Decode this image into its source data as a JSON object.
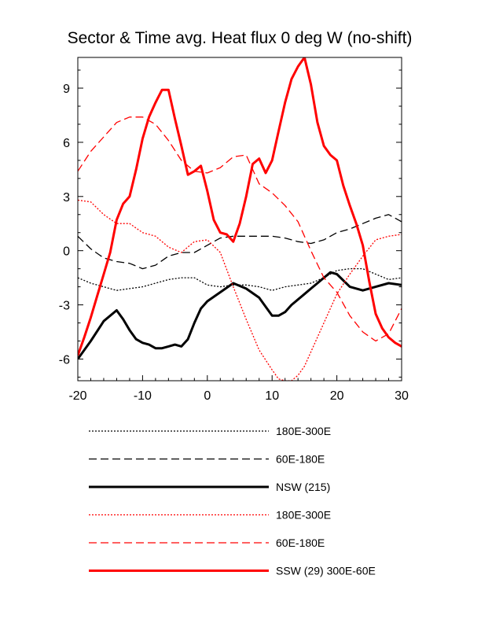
{
  "chart_data": {
    "type": "line",
    "title": "Sector & Time avg. Heat flux 0 deg W (no-shift)",
    "xlabel": "",
    "ylabel": "",
    "xlim": [
      -20,
      30
    ],
    "ylim": [
      -7.2,
      10.7
    ],
    "xticks": [
      -20,
      -10,
      0,
      10,
      20,
      30
    ],
    "yticks": [
      -6,
      -3,
      0,
      3,
      6,
      9
    ],
    "xtick_labels": [
      "-20",
      "-10",
      "0",
      "10",
      "20",
      "30"
    ],
    "ytick_labels": [
      "-6",
      "-3",
      "0",
      "3",
      "6",
      "9"
    ],
    "grid": false,
    "legend_position": "below plot",
    "series": [
      {
        "name": "180E-300E",
        "color": "#000000",
        "dash": "dotted",
        "width": "thin",
        "x": [
          -20,
          -18,
          -16,
          -14,
          -12,
          -10,
          -8,
          -6,
          -4,
          -2,
          0,
          2,
          4,
          6,
          8,
          10,
          12,
          14,
          16,
          18,
          20,
          22,
          24,
          26,
          28,
          30
        ],
        "y": [
          -1.5,
          -1.8,
          -2.0,
          -2.2,
          -2.1,
          -2.0,
          -1.8,
          -1.6,
          -1.5,
          -1.5,
          -1.9,
          -2.0,
          -1.9,
          -1.9,
          -2.0,
          -2.2,
          -2.0,
          -1.9,
          -1.8,
          -1.5,
          -1.1,
          -1.0,
          -1.0,
          -1.3,
          -1.6,
          -1.5
        ]
      },
      {
        "name": "60E-180E",
        "color": "#000000",
        "dash": "dashed",
        "width": "thin",
        "x": [
          -20,
          -18,
          -16,
          -14,
          -12,
          -10,
          -8,
          -6,
          -4,
          -2,
          0,
          2,
          4,
          6,
          8,
          10,
          12,
          14,
          16,
          18,
          20,
          22,
          24,
          26,
          28,
          30
        ],
        "y": [
          0.8,
          0.1,
          -0.4,
          -0.6,
          -0.7,
          -1.0,
          -0.8,
          -0.3,
          -0.1,
          -0.1,
          0.3,
          0.7,
          0.8,
          0.8,
          0.8,
          0.8,
          0.7,
          0.5,
          0.4,
          0.6,
          1.0,
          1.2,
          1.5,
          1.8,
          2.0,
          1.6
        ]
      },
      {
        "name": "NSW (215)",
        "color": "#000000",
        "dash": "solid",
        "width": "thick",
        "x": [
          -20,
          -18,
          -16,
          -14,
          -13,
          -12,
          -11,
          -10,
          -9,
          -8,
          -7,
          -6,
          -5,
          -4,
          -3,
          -2,
          -1,
          0,
          2,
          4,
          6,
          8,
          10,
          11,
          12,
          13,
          14,
          15,
          16,
          17,
          18,
          19,
          20,
          22,
          24,
          26,
          28,
          30
        ],
        "y": [
          -6.0,
          -5.0,
          -3.9,
          -3.3,
          -3.8,
          -4.4,
          -4.9,
          -5.1,
          -5.2,
          -5.4,
          -5.4,
          -5.3,
          -5.2,
          -5.3,
          -4.9,
          -4.0,
          -3.2,
          -2.8,
          -2.3,
          -1.8,
          -2.1,
          -2.6,
          -3.6,
          -3.6,
          -3.4,
          -3.0,
          -2.7,
          -2.4,
          -2.1,
          -1.8,
          -1.5,
          -1.2,
          -1.3,
          -2.0,
          -2.2,
          -2.0,
          -1.8,
          -1.9
        ]
      },
      {
        "name": "180E-300E",
        "color": "#ff0000",
        "dash": "dotted",
        "width": "thin",
        "x": [
          -20,
          -18,
          -16,
          -14,
          -12,
          -10,
          -8,
          -6,
          -4,
          -2,
          0,
          2,
          4,
          6,
          8,
          10,
          11,
          12,
          13,
          14,
          15,
          16,
          18,
          20,
          22,
          24,
          26,
          28,
          30
        ],
        "y": [
          2.8,
          2.7,
          2.0,
          1.5,
          1.5,
          1.0,
          0.8,
          0.2,
          -0.1,
          0.5,
          0.6,
          -0.1,
          -2.0,
          -3.8,
          -5.5,
          -6.6,
          -7.1,
          -7.2,
          -7.2,
          -6.9,
          -6.4,
          -5.6,
          -4.0,
          -2.4,
          -1.3,
          -0.3,
          0.6,
          0.8,
          0.9
        ]
      },
      {
        "name": "60E-180E",
        "color": "#ff0000",
        "dash": "dashed",
        "width": "thin",
        "x": [
          -20,
          -18,
          -16,
          -14,
          -12,
          -10,
          -8,
          -6,
          -4,
          -2,
          0,
          2,
          4,
          6,
          8,
          10,
          12,
          14,
          16,
          18,
          20,
          22,
          24,
          26,
          28,
          30
        ],
        "y": [
          4.4,
          5.5,
          6.3,
          7.1,
          7.4,
          7.4,
          7.0,
          6.1,
          5.0,
          4.4,
          4.3,
          4.6,
          5.2,
          5.3,
          3.7,
          3.2,
          2.5,
          1.6,
          0.0,
          -1.5,
          -2.3,
          -3.6,
          -4.5,
          -5.0,
          -4.6,
          -3.2
        ]
      },
      {
        "name": "SSW (29) 300E-60E",
        "color": "#ff0000",
        "dash": "solid",
        "width": "thick",
        "x": [
          -20,
          -19,
          -18,
          -17,
          -16,
          -15,
          -14,
          -13,
          -12,
          -11,
          -10,
          -9,
          -8,
          -7,
          -6,
          -5,
          -4,
          -3,
          -2,
          -1,
          0,
          1,
          2,
          3,
          4,
          5,
          6,
          7,
          8,
          9,
          10,
          11,
          12,
          13,
          14,
          15,
          16,
          17,
          18,
          19,
          20,
          21,
          22,
          23,
          24,
          25,
          26,
          27,
          28,
          29,
          30
        ],
        "y": [
          -5.8,
          -4.8,
          -3.7,
          -2.5,
          -1.3,
          -0.1,
          1.7,
          2.6,
          3.0,
          4.5,
          6.2,
          7.4,
          8.2,
          8.9,
          8.9,
          7.3,
          5.8,
          4.2,
          4.4,
          4.7,
          3.3,
          1.7,
          1.0,
          0.9,
          0.5,
          1.5,
          3.0,
          4.8,
          5.1,
          4.3,
          5.0,
          6.6,
          8.2,
          9.5,
          10.2,
          10.7,
          9.2,
          7.1,
          5.8,
          5.3,
          5.0,
          3.6,
          2.5,
          1.5,
          0.3,
          -1.7,
          -3.5,
          -4.3,
          -4.8,
          -5.1,
          -5.3
        ]
      }
    ]
  }
}
